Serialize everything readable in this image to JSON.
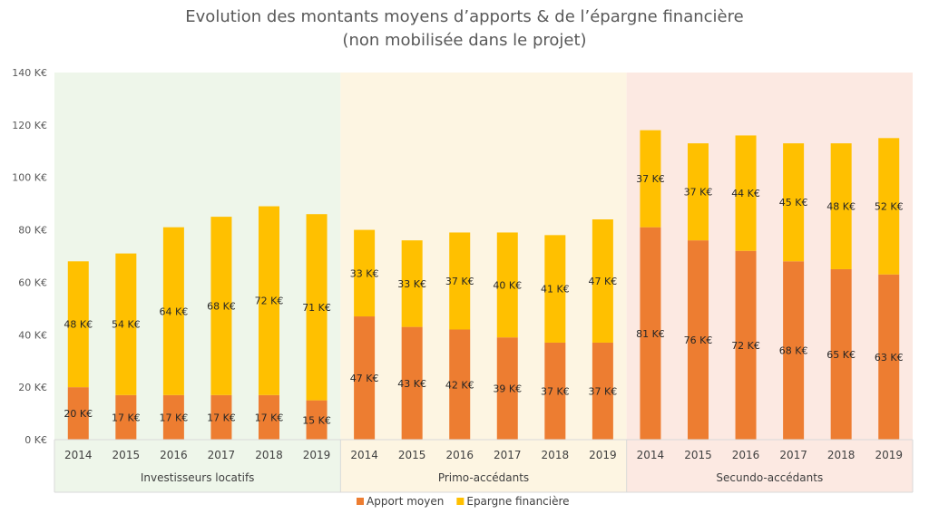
{
  "chart_data": {
    "type": "bar",
    "stacked": true,
    "title": "Evolution des montants moyens d’apports & de l’épargne financière",
    "subtitle": "(non mobilisée dans le projet)",
    "unit_suffix": " K€",
    "ylim": [
      0,
      140
    ],
    "y_ticks": [
      0,
      20,
      40,
      60,
      80,
      100,
      120,
      140
    ],
    "y_tick_labels": [
      "0 K€",
      "20 K€",
      "40 K€",
      "60 K€",
      "80 K€",
      "100 K€",
      "120 K€",
      "140 K€"
    ],
    "grid": false,
    "legend_position": "bottom",
    "groups": [
      {
        "label": "Investisseurs locatifs",
        "background": "#eef6ea",
        "categories": [
          "2014",
          "2015",
          "2016",
          "2017",
          "2018",
          "2019"
        ]
      },
      {
        "label": "Primo-accédants",
        "background": "#fdf5e2",
        "categories": [
          "2014",
          "2015",
          "2016",
          "2017",
          "2018",
          "2019"
        ]
      },
      {
        "label": "Secundo-accédants",
        "background": "#fce9e2",
        "categories": [
          "2014",
          "2015",
          "2016",
          "2017",
          "2018",
          "2019"
        ]
      }
    ],
    "series": [
      {
        "name": "Apport moyen",
        "color": "#ed7d31",
        "values": [
          20,
          17,
          17,
          17,
          17,
          15,
          47,
          43,
          42,
          39,
          37,
          37,
          81,
          76,
          72,
          68,
          65,
          63
        ],
        "labels": [
          "20 K€",
          "17 K€",
          "17 K€",
          "17 K€",
          "17 K€",
          "15 K€",
          "47 K€",
          "43 K€",
          "42 K€",
          "39 K€",
          "37 K€",
          "37 K€",
          "81 K€",
          "76 K€",
          "72 K€",
          "68 K€",
          "65 K€",
          "63 K€"
        ]
      },
      {
        "name": "Epargne financière",
        "color": "#ffc000",
        "values": [
          48,
          54,
          64,
          68,
          72,
          71,
          33,
          33,
          37,
          40,
          41,
          47,
          37,
          37,
          44,
          45,
          48,
          52
        ],
        "labels": [
          "48 K€",
          "54 K€",
          "64 K€",
          "68 K€",
          "72 K€",
          "71 K€",
          "33 K€",
          "33 K€",
          "37 K€",
          "40 K€",
          "41 K€",
          "47 K€",
          "37 K€",
          "37 K€",
          "44 K€",
          "45 K€",
          "48 K€",
          "52 K€"
        ]
      }
    ]
  }
}
